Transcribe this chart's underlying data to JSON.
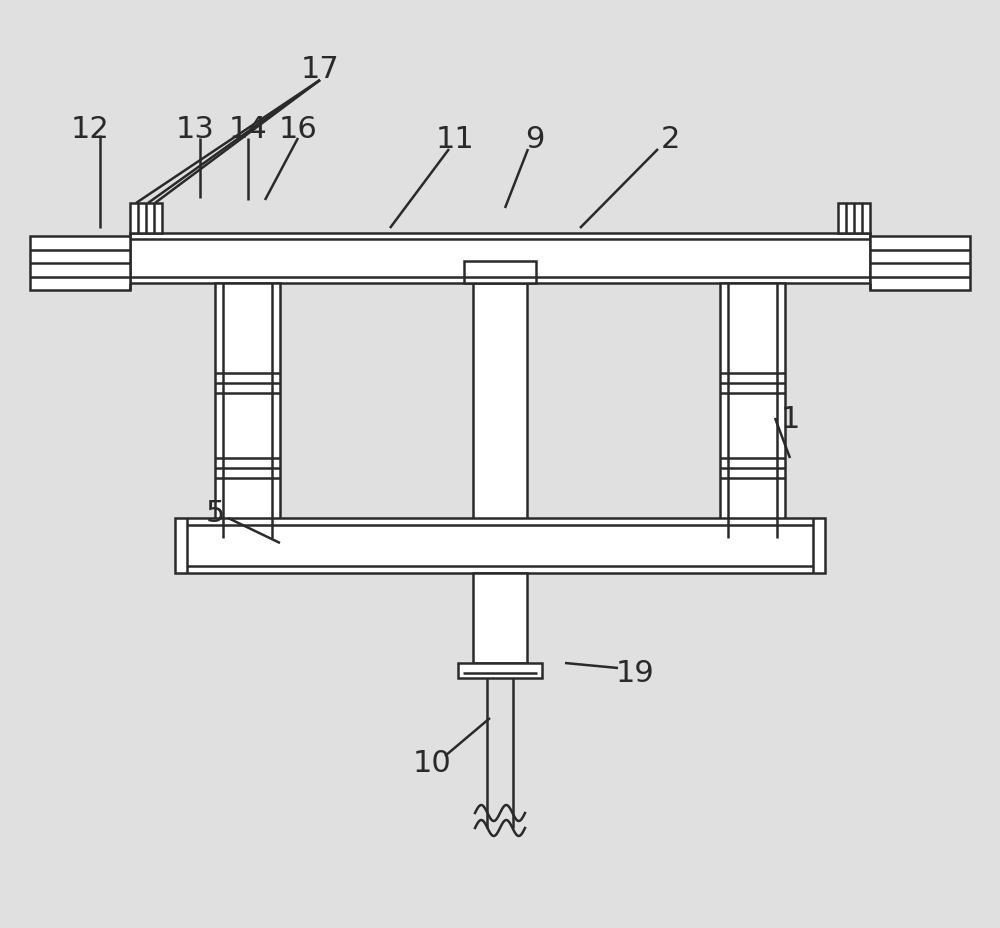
{
  "bg_color": "#e0e0e0",
  "line_color": "#2a2a2a",
  "lw": 1.8,
  "label_fontsize": 22,
  "canvas_xlim": [
    0,
    1000
  ],
  "canvas_ylim": [
    0,
    929
  ]
}
